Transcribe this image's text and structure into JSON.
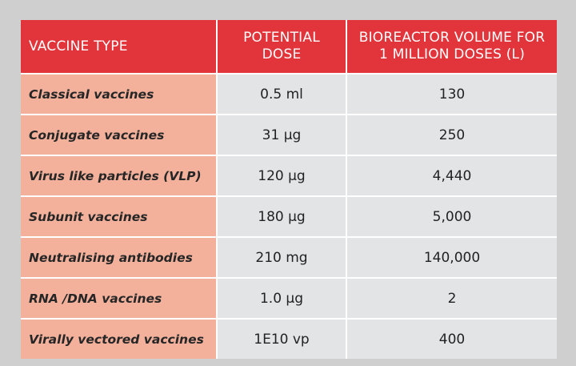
{
  "table": {
    "headers": {
      "type": "Vaccine type",
      "dose": "Potential dose",
      "volume_line1": "Bioreactor volume for",
      "volume_line2": "1 million doses (L)"
    },
    "rows": [
      {
        "type": "Classical vaccines",
        "dose": "0.5 ml",
        "volume": "130"
      },
      {
        "type": "Conjugate vaccines",
        "dose": "31 µg",
        "volume": "250"
      },
      {
        "type": "Virus like particles (VLP)",
        "dose": "120 µg",
        "volume": "4,440"
      },
      {
        "type": "Subunit vaccines",
        "dose": "180 µg",
        "volume": "5,000"
      },
      {
        "type": "Neutralising antibodies",
        "dose": "210 mg",
        "volume": "140,000"
      },
      {
        "type": "RNA /DNA vaccines",
        "dose": "1.0 µg",
        "volume": "2"
      },
      {
        "type": "Virally vectored vaccines",
        "dose": "1E10 vp",
        "volume": "400"
      }
    ]
  },
  "colors": {
    "header_bg": "#e2343b",
    "type_col_bg": "#f3b19c",
    "value_col_bg": "#e3e4e6",
    "page_bg": "#cfcfcf"
  }
}
